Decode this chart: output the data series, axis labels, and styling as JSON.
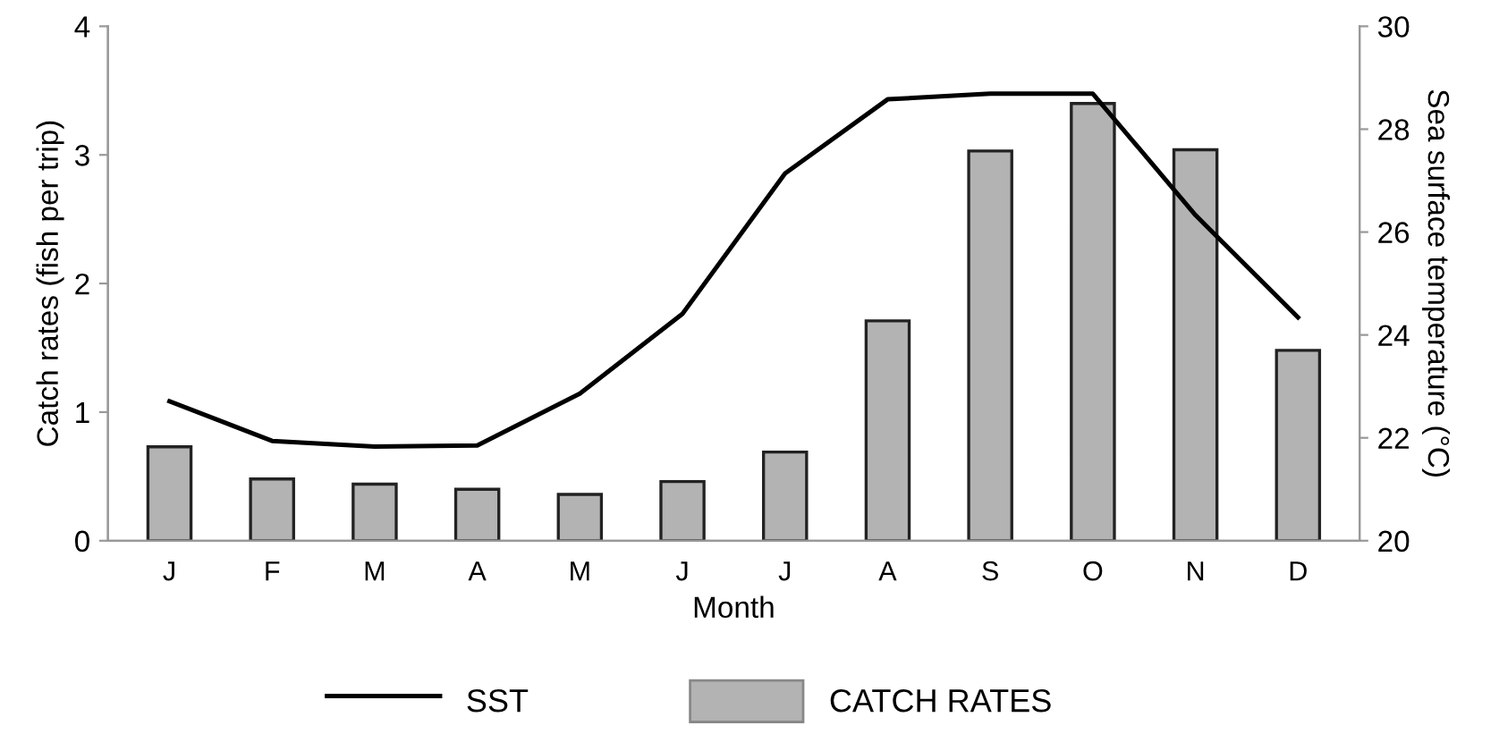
{
  "chart_data": {
    "type": "bar",
    "xlabel": "Month",
    "ylabel": "Catch rates (fish per trip)",
    "y2label": "Sea surface temperature (°C)",
    "categories": [
      "J",
      "F",
      "M",
      "A",
      "M",
      "J",
      "J",
      "A",
      "S",
      "O",
      "N",
      "D"
    ],
    "series": [
      {
        "name": "CATCH RATES",
        "color": "#b3b3b3",
        "values": [
          0.73,
          0.48,
          0.44,
          0.4,
          0.36,
          0.46,
          0.69,
          1.71,
          3.03,
          3.4,
          3.04,
          1.48
        ]
      },
      {
        "name": "SST",
        "type": "line",
        "axis": "y2",
        "color": "#000000",
        "values": [
          22.71,
          21.94,
          21.83,
          21.85,
          22.86,
          24.41,
          27.14,
          28.58,
          28.69,
          28.69,
          26.33,
          24.34
        ]
      }
    ],
    "ylim": [
      0,
      4
    ],
    "yticks": [
      0,
      1,
      2,
      3,
      4
    ],
    "y2lim": [
      20,
      30
    ],
    "y2ticks": [
      20,
      22,
      24,
      26,
      28,
      30
    ],
    "grid": false,
    "legend": "bottom",
    "marker": "none",
    "line_style": "solid"
  }
}
